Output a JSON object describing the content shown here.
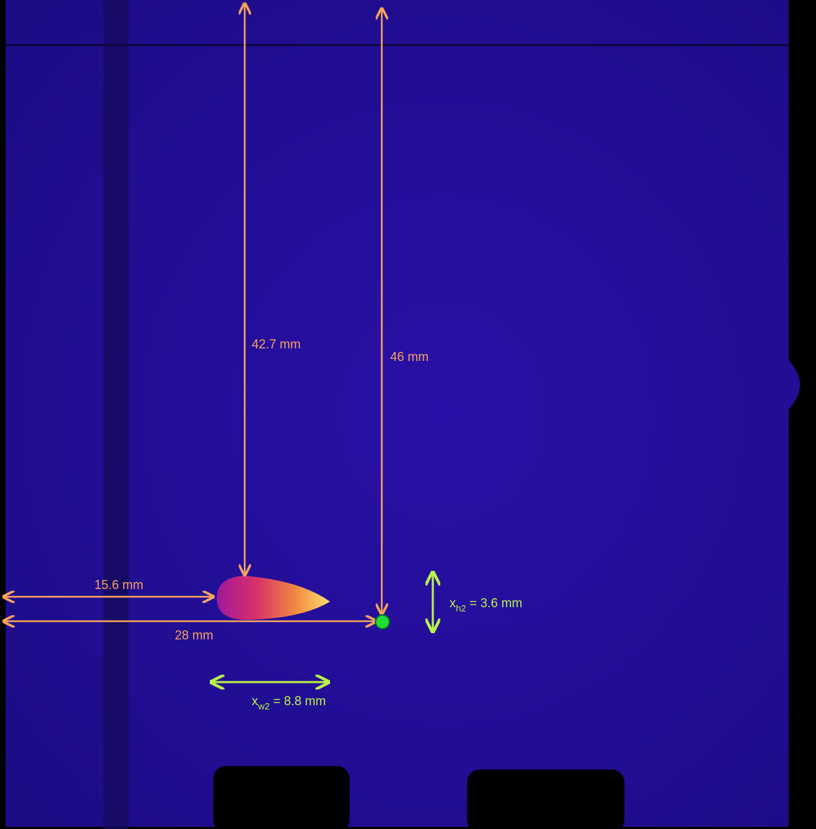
{
  "annotations": {
    "height_to_flame": "42.7 mm",
    "height_to_point": "46 mm",
    "distance_to_flame": "15.6 mm",
    "distance_to_point": "28 mm",
    "flame_height": {
      "symbol": "x",
      "subscript": "h2",
      "value": " = 3.6 mm"
    },
    "flame_width": {
      "symbol": "x",
      "subscript": "w2",
      "value": " = 8.8 mm"
    }
  }
}
